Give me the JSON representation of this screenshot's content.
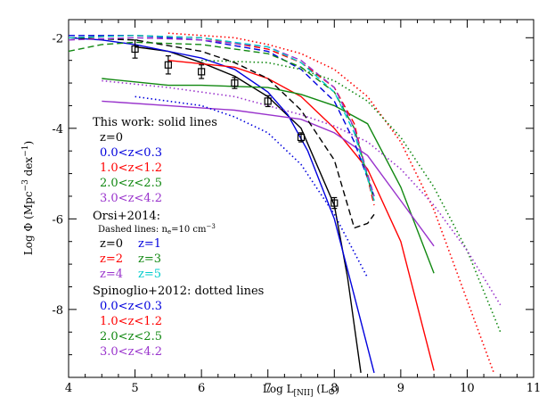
{
  "chart_data": {
    "type": "line",
    "xlabel": "Log L[NII] (L⊙)",
    "ylabel": "Log Φ (Mpc⁻³ dex⁻¹)",
    "xlim": [
      4,
      11
    ],
    "ylim": [
      -9.5,
      -1.6
    ],
    "x_ticks": [
      "4",
      "5",
      "6",
      "7",
      "8",
      "9",
      "10",
      "11"
    ],
    "y_ticks": [
      "-2",
      "-4",
      "-6",
      "-8"
    ],
    "legend": {
      "group1_title": "This work: solid lines",
      "group1_items": [
        {
          "label": "z=0",
          "color": "#000000"
        },
        {
          "label": "0.0<z<0.3",
          "color": "#0000dd"
        },
        {
          "label": "1.0<z<1.2",
          "color": "#ff0000"
        },
        {
          "label": "2.0<z<2.5",
          "color": "#118811"
        },
        {
          "label": "3.0<z<4.2",
          "color": "#9933cc"
        }
      ],
      "group2_title": "Orsi+2014:",
      "group2_subtitle": "Dashed lines: n_e=10 cm^-3",
      "group2_items": [
        {
          "label": "z=0",
          "color": "#000000"
        },
        {
          "label": "z=1",
          "color": "#0000dd"
        },
        {
          "label": "z=2",
          "color": "#ff0000"
        },
        {
          "label": "z=3",
          "color": "#118811"
        },
        {
          "label": "z=4",
          "color": "#9933cc"
        },
        {
          "label": "z=5",
          "color": "#00cccc"
        }
      ],
      "group3_title": "Spinoglio+2012: dotted lines",
      "group3_items": [
        {
          "label": "0.0<z<0.3",
          "color": "#0000dd"
        },
        {
          "label": "1.0<z<1.2",
          "color": "#ff0000"
        },
        {
          "label": "2.0<z<2.5",
          "color": "#118811"
        },
        {
          "label": "3.0<z<4.2",
          "color": "#9933cc"
        }
      ]
    },
    "series": [
      {
        "style": "solid",
        "color": "#000000",
        "x": [
          5.0,
          5.5,
          6.0,
          6.5,
          7.0,
          7.5,
          8.0,
          8.2,
          8.4
        ],
        "y": [
          -2.2,
          -2.3,
          -2.55,
          -2.85,
          -3.3,
          -4.0,
          -5.7,
          -7.3,
          -9.4
        ]
      },
      {
        "style": "solid",
        "color": "#0000dd",
        "x": [
          4.0,
          4.5,
          5.0,
          5.5,
          6.0,
          6.5,
          7.0,
          7.3,
          7.6,
          8.0,
          8.3,
          8.6
        ],
        "y": [
          -2.0,
          -2.05,
          -2.15,
          -2.3,
          -2.45,
          -2.7,
          -3.2,
          -3.7,
          -4.5,
          -6.0,
          -7.7,
          -9.4
        ]
      },
      {
        "style": "solid",
        "color": "#ff0000",
        "x": [
          5.5,
          6.5,
          7.0,
          7.5,
          8.0,
          8.5,
          9.0,
          9.5
        ],
        "y": [
          -2.5,
          -2.65,
          -2.9,
          -3.3,
          -4.0,
          -4.9,
          -6.5,
          -9.35
        ]
      },
      {
        "style": "solid",
        "color": "#118811",
        "x": [
          4.5,
          5.5,
          6.0,
          7.0,
          7.5,
          8.0,
          8.5,
          9.0,
          9.5
        ],
        "y": [
          -2.9,
          -3.05,
          -3.05,
          -3.1,
          -3.25,
          -3.5,
          -3.9,
          -5.3,
          -7.2
        ]
      },
      {
        "style": "solid",
        "color": "#9933cc",
        "x": [
          4.5,
          5.5,
          6.5,
          7.5,
          8.0,
          8.5,
          9.0,
          9.5
        ],
        "y": [
          -3.4,
          -3.5,
          -3.6,
          -3.8,
          -4.1,
          -4.6,
          -5.6,
          -6.6
        ]
      },
      {
        "style": "dashed",
        "color": "#000000",
        "x": [
          4.0,
          5.0,
          6.0,
          6.5,
          7.0,
          7.5,
          8.0,
          8.3,
          8.5,
          8.6
        ],
        "y": [
          -2.0,
          -2.05,
          -2.3,
          -2.55,
          -2.9,
          -3.6,
          -4.7,
          -6.2,
          -6.1,
          -5.9
        ]
      },
      {
        "style": "dashed",
        "color": "#0000dd",
        "x": [
          4.0,
          5.0,
          6.0,
          7.0,
          7.5,
          8.0,
          8.3,
          8.6
        ],
        "y": [
          -1.95,
          -1.95,
          -2.05,
          -2.3,
          -2.7,
          -3.4,
          -4.3,
          -5.5
        ]
      },
      {
        "style": "dashed",
        "color": "#ff0000",
        "x": [
          4.0,
          5.0,
          6.0,
          7.0,
          7.5,
          8.0,
          8.3,
          8.6
        ],
        "y": [
          -2.0,
          -1.95,
          -2.0,
          -2.25,
          -2.55,
          -3.1,
          -3.9,
          -5.7
        ]
      },
      {
        "style": "dashed",
        "color": "#118811",
        "x": [
          4.0,
          4.5,
          5.0,
          6.0,
          7.0,
          7.5,
          8.0,
          8.3,
          8.6
        ],
        "y": [
          -2.3,
          -2.15,
          -2.1,
          -2.15,
          -2.35,
          -2.65,
          -3.2,
          -4.0,
          -5.6
        ]
      },
      {
        "style": "dashed",
        "color": "#9933cc",
        "x": [
          4.0,
          5.0,
          6.0,
          7.0,
          7.5,
          8.0,
          8.3,
          8.6
        ],
        "y": [
          -2.05,
          -2.0,
          -2.05,
          -2.2,
          -2.5,
          -3.1,
          -4.0,
          -5.5
        ]
      },
      {
        "style": "dashed",
        "color": "#00cccc",
        "x": [
          4.0,
          5.0,
          6.0,
          7.0,
          7.5,
          8.0,
          8.3,
          8.6
        ],
        "y": [
          -2.0,
          -1.95,
          -2.0,
          -2.2,
          -2.55,
          -3.2,
          -4.1,
          -5.6
        ]
      },
      {
        "style": "dotted",
        "color": "#0000dd",
        "x": [
          5.0,
          6.0,
          6.5,
          7.0,
          7.5,
          8.0,
          8.5
        ],
        "y": [
          -3.3,
          -3.5,
          -3.75,
          -4.1,
          -4.8,
          -5.9,
          -7.3
        ]
      },
      {
        "style": "dotted",
        "color": "#ff0000",
        "x": [
          5.5,
          6.5,
          7.0,
          7.5,
          8.0,
          8.5,
          9.0,
          9.5,
          10.0,
          10.4
        ],
        "y": [
          -1.9,
          -2.0,
          -2.15,
          -2.35,
          -2.7,
          -3.3,
          -4.3,
          -5.8,
          -7.8,
          -9.4
        ]
      },
      {
        "style": "dotted",
        "color": "#118811",
        "x": [
          6.0,
          7.0,
          7.5,
          8.0,
          8.5,
          9.0,
          9.5,
          10.0,
          10.5
        ],
        "y": [
          -2.5,
          -2.55,
          -2.7,
          -2.95,
          -3.4,
          -4.2,
          -5.3,
          -6.7,
          -8.5
        ]
      },
      {
        "style": "dotted",
        "color": "#9933cc",
        "x": [
          4.5,
          5.5,
          6.5,
          7.5,
          8.0,
          8.5,
          9.0,
          9.5,
          10.0,
          10.5
        ],
        "y": [
          -2.95,
          -3.1,
          -3.3,
          -3.7,
          -3.95,
          -4.3,
          -4.9,
          -5.7,
          -6.7,
          -7.9
        ]
      }
    ],
    "data_points": {
      "color": "#000000",
      "x": [
        5.0,
        5.5,
        6.0,
        6.5,
        7.0,
        7.5,
        8.0
      ],
      "y": [
        -2.25,
        -2.6,
        -2.75,
        -3.0,
        -3.4,
        -4.2,
        -5.65
      ],
      "err": [
        0.2,
        0.2,
        0.15,
        0.12,
        0.12,
        0.1,
        0.12
      ]
    }
  }
}
